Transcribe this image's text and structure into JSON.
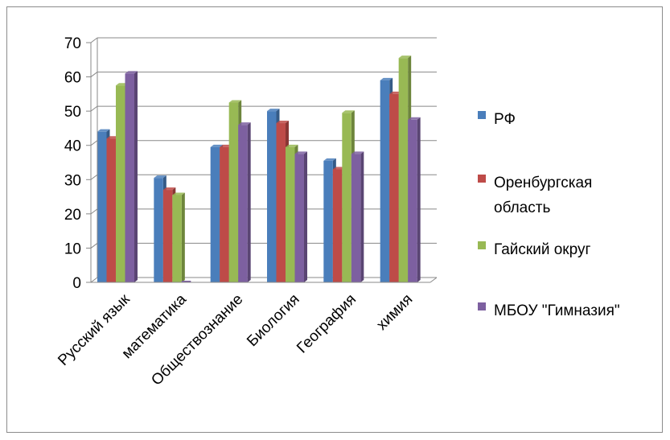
{
  "chart_data": {
    "type": "bar",
    "categories": [
      "Русский язык",
      "математика",
      "Обществознание",
      "Биология",
      "География",
      "химия"
    ],
    "series": [
      {
        "name": "РФ",
        "color": "#4a7ebb",
        "values": [
          44,
          30.5,
          39.5,
          50,
          35.5,
          59
        ]
      },
      {
        "name": "Оренбургская область",
        "color": "#be4b48",
        "values": [
          42,
          27,
          39.5,
          46.5,
          33,
          55
        ]
      },
      {
        "name": "Гайский округ",
        "color": "#98b954",
        "values": [
          57.5,
          25.5,
          52.5,
          39.5,
          49.5,
          65.5
        ]
      },
      {
        "name": "МБОУ \"Гимназия\"",
        "color": "#7d60a0",
        "values": [
          61,
          0,
          46,
          37.5,
          37.5,
          47.5
        ]
      }
    ],
    "legend_lines": [
      [
        "РФ"
      ],
      [
        "Оренбургская",
        "область"
      ],
      [
        "Гайский округ"
      ],
      [
        "МБОУ \"Гимназия\""
      ]
    ],
    "yticks": [
      "0",
      "10",
      "20",
      "30",
      "40",
      "50",
      "60",
      "70"
    ],
    "ylim": [
      0,
      70
    ],
    "grid": true,
    "legend_position": "right"
  }
}
